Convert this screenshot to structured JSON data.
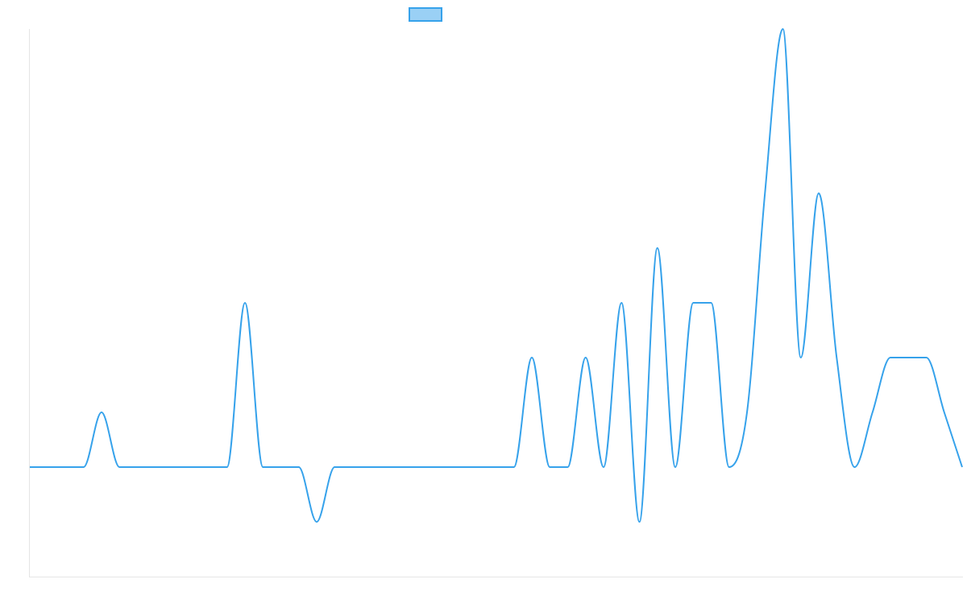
{
  "chart_data": {
    "type": "line",
    "title": "",
    "xlabel": "",
    "ylabel": "",
    "legend": {
      "placement": "top-center",
      "entries": [
        ""
      ]
    },
    "grid": false,
    "smooth": true,
    "ylim": [
      -2,
      8
    ],
    "series": [
      {
        "name": "",
        "color": "#36A2EB",
        "fill_color": "#9AD0F5",
        "values": [
          0,
          0,
          0,
          0,
          1,
          0,
          0,
          0,
          0,
          0,
          0,
          0,
          3,
          0,
          0,
          0,
          -1,
          0,
          0,
          0,
          0,
          0,
          0,
          0,
          0,
          0,
          0,
          0,
          2,
          0,
          0,
          2,
          0,
          3,
          -1,
          4,
          0,
          3,
          3,
          0,
          1,
          5,
          8,
          2,
          5,
          2,
          0,
          1,
          2,
          2,
          2,
          1,
          0
        ]
      }
    ]
  }
}
